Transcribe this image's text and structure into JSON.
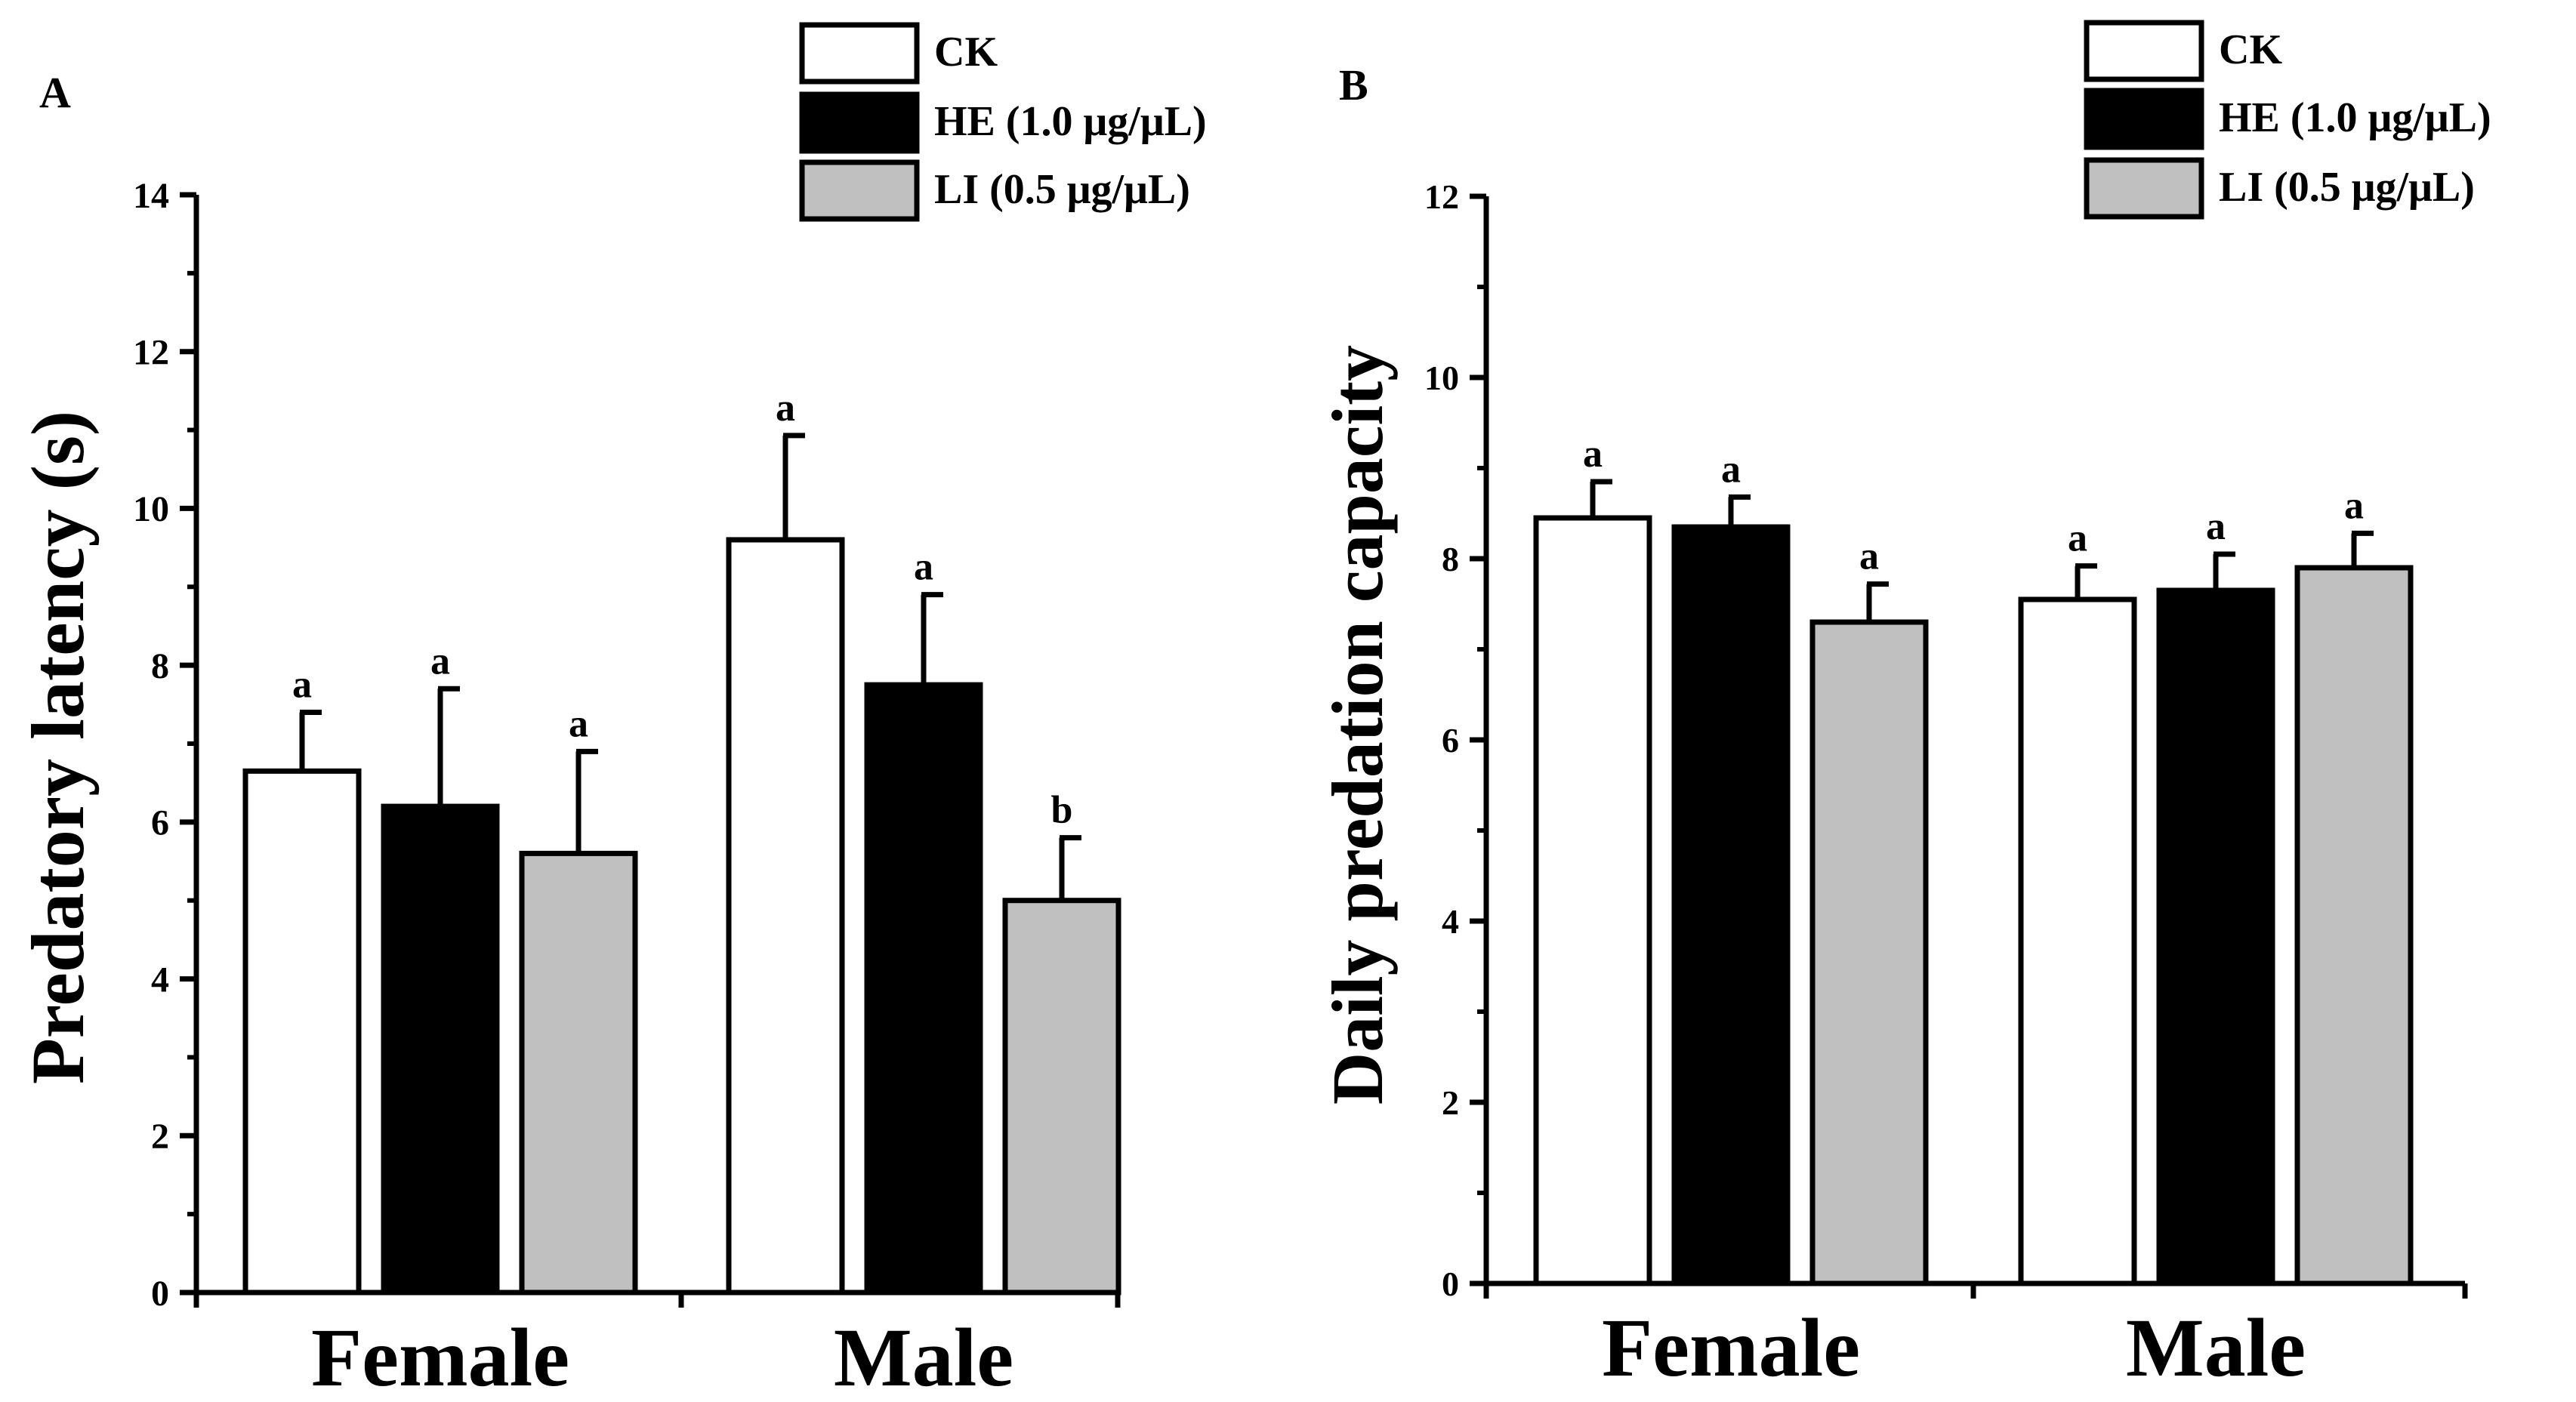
{
  "colors": {
    "CK": "#ffffff",
    "HE": "#000000",
    "LI": "#c0c0c0",
    "stroke": "#000000"
  },
  "chart_data": [
    {
      "type": "bar",
      "panel_label": "A",
      "ylabel": "Predatory latency (s)",
      "xlabel": "",
      "categories": [
        "Female",
        "Male"
      ],
      "ylim": [
        0,
        14
      ],
      "yticks": [
        0,
        2,
        4,
        6,
        8,
        10,
        12,
        14
      ],
      "series": [
        {
          "key": "CK",
          "name": "CK",
          "values": [
            6.65,
            9.6
          ],
          "errors": [
            0.75,
            1.33
          ],
          "letters": [
            "a",
            "a"
          ]
        },
        {
          "key": "HE",
          "name": "HE (1.0 μg/μL)",
          "values": [
            6.2,
            7.75
          ],
          "errors": [
            1.5,
            1.15
          ],
          "letters": [
            "a",
            "a"
          ]
        },
        {
          "key": "LI",
          "name": "LI (0.5 μg/μL)",
          "values": [
            5.6,
            5.0
          ],
          "errors": [
            1.3,
            0.8
          ],
          "letters": [
            "a",
            "b"
          ]
        }
      ],
      "legend": [
        "CK",
        "HE (1.0 μg/μL)",
        "LI (0.5 μg/μL)"
      ],
      "legend_position": "top-right"
    },
    {
      "type": "bar",
      "panel_label": "B",
      "ylabel": "Daily predation capacity",
      "xlabel": "",
      "categories": [
        "Female",
        "Male"
      ],
      "ylim": [
        0,
        12
      ],
      "yticks": [
        0,
        2,
        4,
        6,
        8,
        10,
        12
      ],
      "series": [
        {
          "key": "CK",
          "name": "CK",
          "values": [
            8.45,
            7.55
          ],
          "errors": [
            0.4,
            0.37
          ],
          "letters": [
            "a",
            "a"
          ]
        },
        {
          "key": "HE",
          "name": "HE (1.0 μg/μL)",
          "values": [
            8.35,
            7.65
          ],
          "errors": [
            0.33,
            0.4
          ],
          "letters": [
            "a",
            "a"
          ]
        },
        {
          "key": "LI",
          "name": "LI (0.5 μg/μL)",
          "values": [
            7.3,
            7.9
          ],
          "errors": [
            0.42,
            0.38
          ],
          "letters": [
            "a",
            "a"
          ]
        }
      ],
      "legend": [
        "CK",
        "HE (1.0 μg/μL)",
        "LI (0.5 μg/μL)"
      ],
      "legend_position": "top-right"
    }
  ]
}
